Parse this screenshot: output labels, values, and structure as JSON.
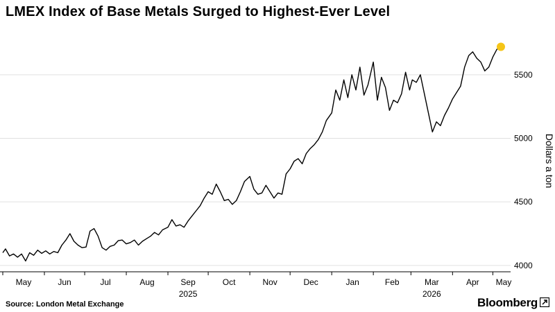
{
  "title": "LMEX Index of Base Metals Surged to Highest-Ever Level",
  "source": "Source: London Metal Exchange",
  "brand": "Bloomberg",
  "chart_data": {
    "type": "line",
    "title": "LMEX Index of Base Metals Surged to Highest-Ever Level",
    "ylabel": "Dollars a ton",
    "xlabel": "",
    "ylim": [
      3950,
      5870
    ],
    "yticks": [
      4000,
      4500,
      5000,
      5500
    ],
    "ytick_labels": [
      "4000",
      "4500",
      "5000",
      "5500"
    ],
    "month_labels": [
      "May",
      "Jun",
      "Jul",
      "Aug",
      "Sep",
      "Oct",
      "Nov",
      "Dec",
      "Jan",
      "Feb",
      "Mar",
      "Apr",
      "May"
    ],
    "year_labels": [
      {
        "text": "2025",
        "under_month": 4
      },
      {
        "text": "2026",
        "under_month": 10
      }
    ],
    "highlight_last_point": true,
    "colors": {
      "line": "#000000",
      "highlight": "#f5c518",
      "grid": "#e0e0e0"
    },
    "series": [
      {
        "x": [
          "2025-05-01",
          "2025-05-03",
          "2025-05-06",
          "2025-05-09",
          "2025-05-12",
          "2025-05-15",
          "2025-05-18",
          "2025-05-21",
          "2025-05-24",
          "2025-05-27",
          "2025-05-30",
          "2025-06-02",
          "2025-06-05",
          "2025-06-08",
          "2025-06-11",
          "2025-06-14",
          "2025-06-17",
          "2025-06-20",
          "2025-06-23",
          "2025-06-26",
          "2025-06-29",
          "2025-07-02",
          "2025-07-05",
          "2025-07-08",
          "2025-07-11",
          "2025-07-14",
          "2025-07-17",
          "2025-07-20",
          "2025-07-23",
          "2025-07-26",
          "2025-07-29",
          "2025-08-01",
          "2025-08-04",
          "2025-08-07",
          "2025-08-10",
          "2025-08-13",
          "2025-08-16",
          "2025-08-19",
          "2025-08-22",
          "2025-08-25",
          "2025-08-28",
          "2025-09-01",
          "2025-09-04",
          "2025-09-07",
          "2025-09-10",
          "2025-09-13",
          "2025-09-16",
          "2025-09-19",
          "2025-09-22",
          "2025-09-25",
          "2025-09-28",
          "2025-10-01",
          "2025-10-04",
          "2025-10-07",
          "2025-10-10",
          "2025-10-13",
          "2025-10-16",
          "2025-10-19",
          "2025-10-22",
          "2025-10-25",
          "2025-10-28",
          "2025-11-01",
          "2025-11-04",
          "2025-11-07",
          "2025-11-10",
          "2025-11-13",
          "2025-11-16",
          "2025-11-19",
          "2025-11-22",
          "2025-11-25",
          "2025-11-28",
          "2025-12-01",
          "2025-12-04",
          "2025-12-07",
          "2025-12-10",
          "2025-12-13",
          "2025-12-16",
          "2025-12-19",
          "2025-12-22",
          "2025-12-25",
          "2025-12-28",
          "2026-01-01",
          "2026-01-04",
          "2026-01-07",
          "2026-01-10",
          "2026-01-13",
          "2026-01-16",
          "2026-01-19",
          "2026-01-22",
          "2026-01-25",
          "2026-01-28",
          "2026-02-01",
          "2026-02-04",
          "2026-02-07",
          "2026-02-10",
          "2026-02-13",
          "2026-02-16",
          "2026-02-19",
          "2026-02-22",
          "2026-02-25",
          "2026-02-28",
          "2026-03-02",
          "2026-03-05",
          "2026-03-08",
          "2026-03-11",
          "2026-03-14",
          "2026-03-17",
          "2026-03-20",
          "2026-03-23",
          "2026-03-26",
          "2026-03-29",
          "2026-04-01",
          "2026-04-04",
          "2026-04-07",
          "2026-04-10",
          "2026-04-13",
          "2026-04-16",
          "2026-04-19",
          "2026-04-22",
          "2026-04-25",
          "2026-04-28",
          "2026-05-01",
          "2026-05-04",
          "2026-05-07"
        ],
        "values": [
          4100,
          4130,
          4075,
          4090,
          4065,
          4090,
          4035,
          4100,
          4080,
          4120,
          4095,
          4115,
          4090,
          4110,
          4100,
          4160,
          4200,
          4250,
          4190,
          4160,
          4140,
          4145,
          4270,
          4290,
          4230,
          4140,
          4120,
          4150,
          4160,
          4195,
          4200,
          4170,
          4180,
          4200,
          4160,
          4190,
          4210,
          4230,
          4260,
          4240,
          4280,
          4300,
          4360,
          4310,
          4320,
          4300,
          4350,
          4390,
          4430,
          4470,
          4530,
          4580,
          4560,
          4640,
          4580,
          4510,
          4520,
          4480,
          4510,
          4580,
          4660,
          4700,
          4600,
          4560,
          4570,
          4630,
          4580,
          4530,
          4570,
          4560,
          4720,
          4760,
          4820,
          4840,
          4800,
          4880,
          4920,
          4950,
          4990,
          5050,
          5140,
          5200,
          5380,
          5300,
          5460,
          5320,
          5500,
          5380,
          5560,
          5340,
          5420,
          5600,
          5300,
          5480,
          5400,
          5220,
          5300,
          5280,
          5350,
          5520,
          5380,
          5460,
          5440,
          5500,
          5350,
          5200,
          5050,
          5130,
          5100,
          5180,
          5240,
          5310,
          5360,
          5410,
          5560,
          5650,
          5680,
          5630,
          5600,
          5530,
          5560,
          5640,
          5700,
          5720
        ]
      }
    ]
  }
}
